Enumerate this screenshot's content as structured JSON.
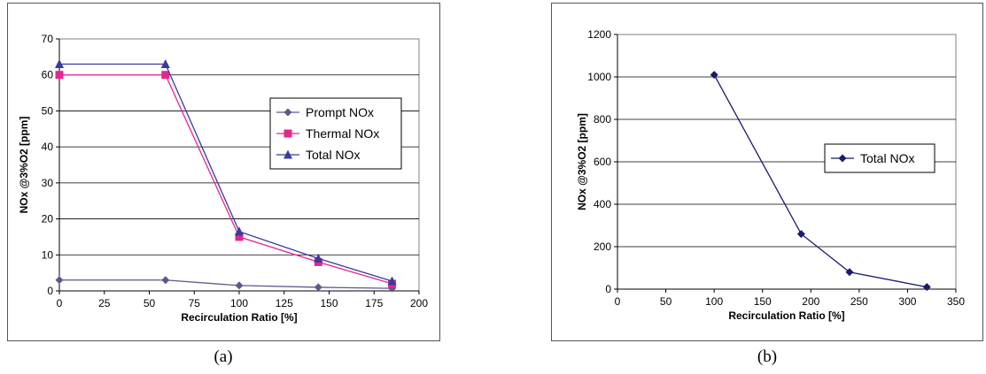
{
  "chart_data": [
    {
      "type": "line",
      "panel_label": "(a)",
      "xlabel": "Recirculation Ratio [%]",
      "ylabel": "NOx @3%O2 [ppm]",
      "xlim": [
        0,
        200
      ],
      "ylim": [
        0,
        70
      ],
      "xticks": [
        0,
        25,
        50,
        75,
        100,
        125,
        150,
        175,
        200
      ],
      "yticks": [
        0,
        10,
        20,
        30,
        40,
        50,
        60,
        70
      ],
      "grid": "horizontal",
      "plot_background": "#ffffff",
      "legend_position": "right",
      "series": [
        {
          "name": "Prompt NOx",
          "color": "#5a5a8a",
          "marker": "diamond",
          "x": [
            0,
            59,
            100,
            144,
            185
          ],
          "y": [
            3,
            3,
            1.5,
            1,
            0.7
          ]
        },
        {
          "name": "Thermal NOx",
          "color": "#e62590",
          "marker": "square",
          "x": [
            0,
            59,
            100,
            144,
            185
          ],
          "y": [
            60,
            60,
            15,
            8,
            2
          ]
        },
        {
          "name": "Total NOx",
          "color": "#3a3aa0",
          "marker": "triangle",
          "x": [
            0,
            59,
            100,
            144,
            185
          ],
          "y": [
            63,
            63,
            16.5,
            9,
            2.7
          ]
        }
      ]
    },
    {
      "type": "line",
      "panel_label": "(b)",
      "xlabel": "Recirculation Ratio [%]",
      "ylabel": "NOx @3%O2 [ppm]",
      "xlim": [
        0,
        350
      ],
      "ylim": [
        0,
        1200
      ],
      "xticks": [
        0,
        50,
        100,
        150,
        200,
        250,
        300,
        350
      ],
      "yticks": [
        0,
        200,
        400,
        600,
        800,
        1000,
        1200
      ],
      "grid": "horizontal",
      "plot_background": "#ffffff",
      "legend_position": "right",
      "series": [
        {
          "name": "Total NOx",
          "color": "#1a1a6e",
          "marker": "diamond",
          "x": [
            100,
            190,
            240,
            320
          ],
          "y": [
            1010,
            260,
            80,
            10
          ]
        }
      ]
    }
  ]
}
